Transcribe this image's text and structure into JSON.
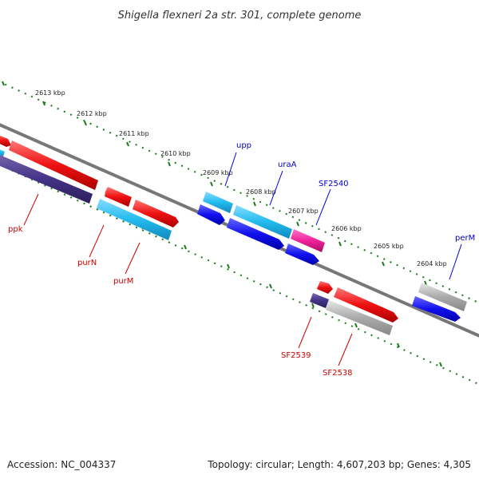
{
  "title": "Shigella flexneri 2a str. 301, complete genome",
  "footer": {
    "accession": "Accession: NC_004337",
    "summary": "Topology: circular; Length: 4,607,203 bp; Genes: 4,305"
  },
  "kbp_labels": [
    "2613 kbp",
    "2612 kbp",
    "2611 kbp",
    "2610 kbp",
    "2609 kbp",
    "2608 kbp",
    "2607 kbp",
    "2606 kbp",
    "2605 kbp",
    "2604 kbp"
  ],
  "gene_labels": {
    "upp": "upp",
    "uraA": "uraA",
    "SF2540": "SF2540",
    "perM": "perM",
    "ppk": "ppk",
    "purN": "purN",
    "purM": "purM",
    "SF2539": "SF2539",
    "SF2538": "SF2538"
  },
  "colors": {
    "backbone": "#808080",
    "tick": "#1a7a1a",
    "red": "#ee1111",
    "cyan": "#22bbee",
    "blue": "#1111ee",
    "purple": "#443388",
    "magenta": "#ee2299",
    "gray": "#aaaaaa",
    "label_blue": "#0000cc",
    "label_red": "#cc0000"
  }
}
